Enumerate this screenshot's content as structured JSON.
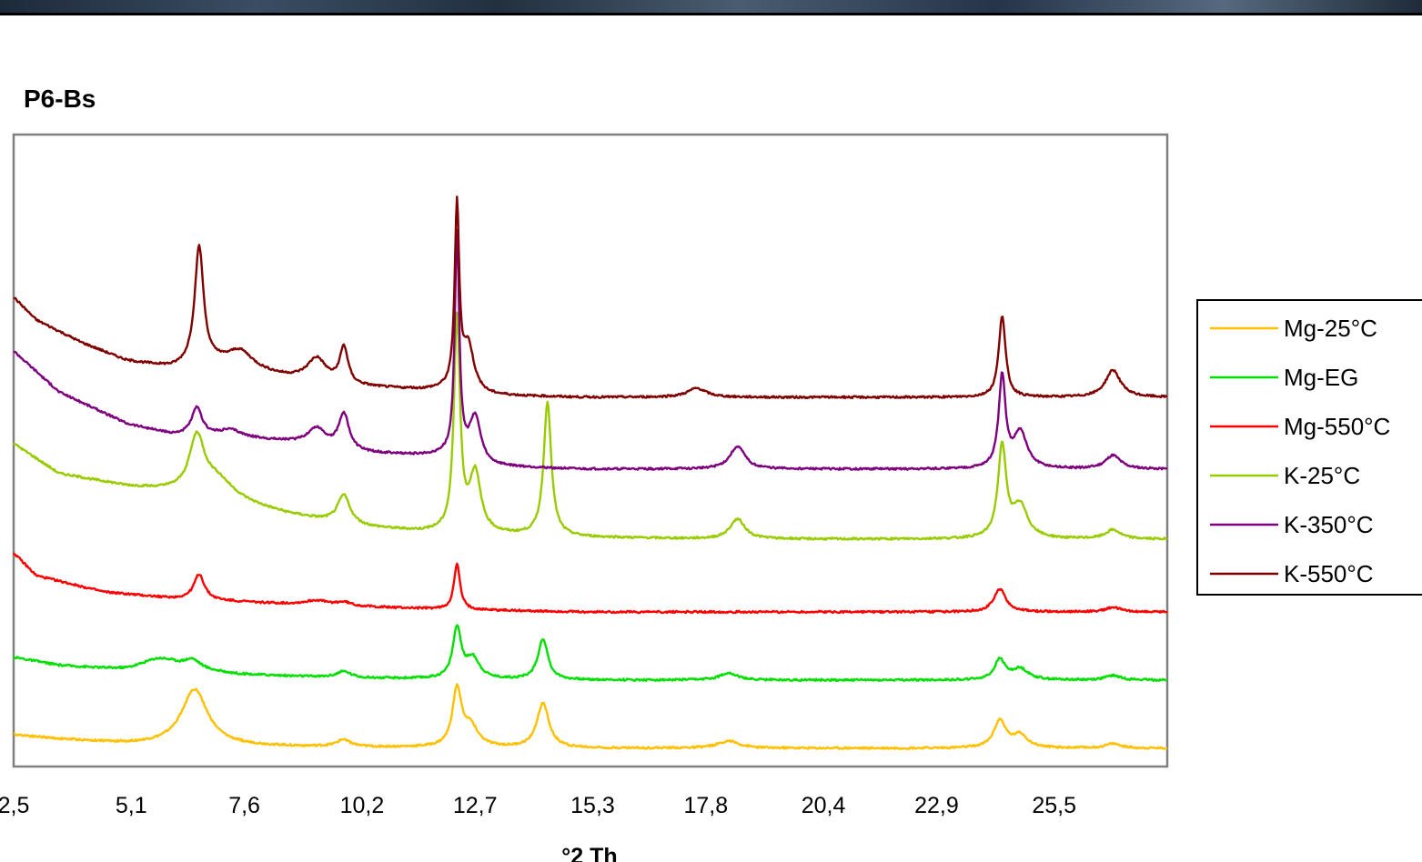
{
  "chart_data": {
    "type": "line",
    "title": "P6-Bs",
    "xlabel": "°2 Th",
    "ylabel": "",
    "xlim": [
      2.5,
      28.0
    ],
    "x_ticks": [
      "2,5",
      "5,1",
      "7,6",
      "10,2",
      "12,7",
      "15,3",
      "17,8",
      "20,4",
      "22,9",
      "25,5"
    ],
    "x_tick_values": [
      2.5,
      5.1,
      7.6,
      10.2,
      12.7,
      15.3,
      17.8,
      20.4,
      22.9,
      25.5
    ],
    "grid": false,
    "legend_position": "right",
    "y_axis_shown": false,
    "series": [
      {
        "name": "Mg-25°C",
        "color": "#ffc000",
        "baseline": 50,
        "background": [
          [
            2.5,
            15
          ],
          [
            3.5,
            10
          ],
          [
            5.0,
            5
          ],
          [
            6.5,
            3
          ],
          [
            10,
            1
          ],
          [
            15,
            0
          ],
          [
            28,
            0
          ]
        ],
        "peaks": [
          [
            6.5,
            62,
            0.35
          ],
          [
            9.8,
            8,
            0.18
          ],
          [
            12.3,
            62,
            0.12
          ],
          [
            12.6,
            22,
            0.2
          ],
          [
            14.2,
            49,
            0.16
          ],
          [
            18.3,
            8,
            0.28
          ],
          [
            24.3,
            30,
            0.16
          ],
          [
            24.75,
            14,
            0.2
          ],
          [
            26.8,
            5,
            0.2
          ]
        ]
      },
      {
        "name": "Mg-EG",
        "color": "#00e000",
        "baseline": 125,
        "background": [
          [
            2.5,
            25
          ],
          [
            3.5,
            16
          ],
          [
            5.0,
            10
          ],
          [
            6.0,
            12
          ],
          [
            7.5,
            6
          ],
          [
            10,
            2
          ],
          [
            15,
            0
          ],
          [
            28,
            0
          ]
        ],
        "peaks": [
          [
            5.7,
            12,
            0.5
          ],
          [
            6.45,
            10,
            0.22
          ],
          [
            9.8,
            7,
            0.2
          ],
          [
            12.3,
            55,
            0.11
          ],
          [
            12.65,
            22,
            0.18
          ],
          [
            14.2,
            45,
            0.13
          ],
          [
            18.3,
            8,
            0.22
          ],
          [
            24.3,
            22,
            0.14
          ],
          [
            24.75,
            12,
            0.22
          ],
          [
            26.8,
            5,
            0.2
          ]
        ]
      },
      {
        "name": "Mg-550°C",
        "color": "#ff0000",
        "baseline": 200,
        "background": [
          [
            2.5,
            65
          ],
          [
            3.0,
            40
          ],
          [
            4.5,
            22
          ],
          [
            6.0,
            15
          ],
          [
            8.0,
            10
          ],
          [
            10,
            6
          ],
          [
            12,
            3
          ],
          [
            15,
            0
          ],
          [
            28,
            0
          ]
        ],
        "peaks": [
          [
            6.6,
            28,
            0.14
          ],
          [
            9.2,
            5,
            0.3
          ],
          [
            9.8,
            4,
            0.2
          ],
          [
            12.3,
            50,
            0.08
          ],
          [
            24.3,
            25,
            0.16
          ],
          [
            26.8,
            5,
            0.2
          ]
        ]
      },
      {
        "name": "K-25°C",
        "color": "#99cc00",
        "baseline": 280,
        "background": [
          [
            2.5,
            105
          ],
          [
            3.5,
            72
          ],
          [
            5.0,
            58
          ],
          [
            6.0,
            52
          ],
          [
            7.0,
            45
          ],
          [
            8.5,
            28
          ],
          [
            10,
            14
          ],
          [
            11.5,
            8
          ],
          [
            13.0,
            5
          ],
          [
            15,
            2
          ],
          [
            18,
            0
          ],
          [
            28,
            0
          ]
        ],
        "peaks": [
          [
            6.55,
            60,
            0.2
          ],
          [
            7.0,
            20,
            0.45
          ],
          [
            9.8,
            32,
            0.17
          ],
          [
            12.3,
            235,
            0.08
          ],
          [
            12.7,
            65,
            0.15
          ],
          [
            14.3,
            148,
            0.1
          ],
          [
            18.5,
            22,
            0.2
          ],
          [
            24.35,
            100,
            0.11
          ],
          [
            24.75,
            35,
            0.2
          ],
          [
            26.8,
            10,
            0.2
          ]
        ]
      },
      {
        "name": "K-350°C",
        "color": "#7f007f",
        "baseline": 357,
        "background": [
          [
            2.5,
            130
          ],
          [
            3.5,
            85
          ],
          [
            5.0,
            50
          ],
          [
            6.0,
            38
          ],
          [
            7.0,
            36
          ],
          [
            8.5,
            30
          ],
          [
            10,
            18
          ],
          [
            11.5,
            15
          ],
          [
            12,
            15
          ],
          [
            13,
            3
          ],
          [
            15,
            0
          ],
          [
            18,
            0
          ],
          [
            28,
            0
          ]
        ],
        "peaks": [
          [
            6.55,
            30,
            0.14
          ],
          [
            7.3,
            8,
            0.3
          ],
          [
            9.2,
            20,
            0.25
          ],
          [
            9.8,
            40,
            0.14
          ],
          [
            12.3,
            245,
            0.06
          ],
          [
            12.7,
            50,
            0.15
          ],
          [
            18.5,
            25,
            0.2
          ],
          [
            24.35,
            100,
            0.09
          ],
          [
            24.75,
            40,
            0.18
          ],
          [
            26.8,
            15,
            0.2
          ]
        ]
      },
      {
        "name": "K-550°C",
        "color": "#800000",
        "baseline": 436,
        "background": [
          [
            2.5,
            110
          ],
          [
            3.0,
            85
          ],
          [
            4.0,
            60
          ],
          [
            5.0,
            40
          ],
          [
            6.0,
            32
          ],
          [
            7.0,
            35
          ],
          [
            8.5,
            22
          ],
          [
            10,
            12
          ],
          [
            11.5,
            8
          ],
          [
            12,
            8
          ],
          [
            13,
            2
          ],
          [
            15,
            0
          ],
          [
            28,
            0
          ]
        ],
        "peaks": [
          [
            6.6,
            130,
            0.12
          ],
          [
            7.5,
            20,
            0.35
          ],
          [
            9.2,
            25,
            0.25
          ],
          [
            9.8,
            40,
            0.11
          ],
          [
            12.3,
            200,
            0.06
          ],
          [
            12.55,
            50,
            0.15
          ],
          [
            17.6,
            10,
            0.25
          ],
          [
            24.35,
            90,
            0.09
          ],
          [
            26.8,
            30,
            0.2
          ]
        ]
      }
    ]
  }
}
